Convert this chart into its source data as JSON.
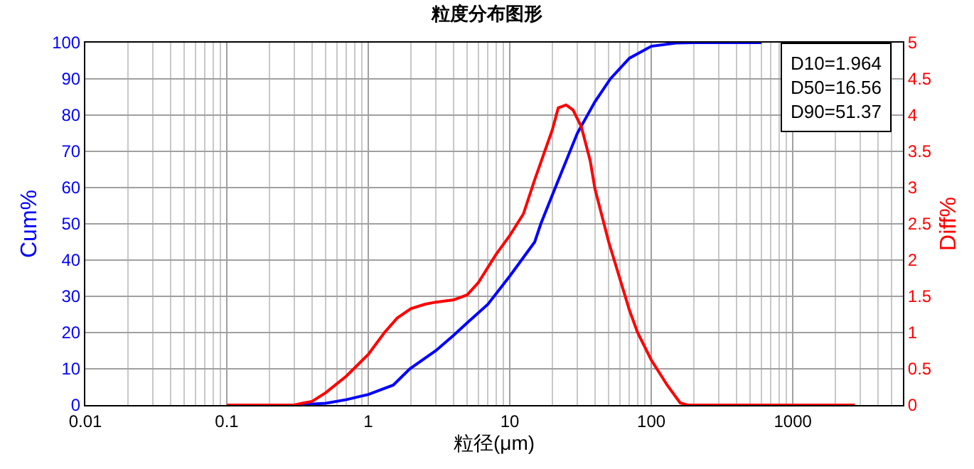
{
  "chart_data": {
    "type": "line",
    "title": "粒度分布图形",
    "xlabel": "粒径(μm)",
    "ylabel": "Cum%",
    "y2label": "Diff%",
    "log": "x",
    "grid": true,
    "marker": "none",
    "line_style": "solid",
    "xlim": [
      0.01,
      6000
    ],
    "xticks": [
      0.01,
      0.1,
      1,
      10,
      100,
      1000
    ],
    "ylim": [
      0,
      100
    ],
    "yticks": [
      0,
      10,
      20,
      30,
      40,
      50,
      60,
      70,
      80,
      90,
      100
    ],
    "y2lim": [
      0,
      5
    ],
    "y2ticks": [
      0,
      0.5,
      1,
      1.5,
      2,
      2.5,
      3,
      3.5,
      4,
      4.5,
      5
    ],
    "annotations": [
      "D10=1.964",
      "D50=16.56",
      "D90=51.37"
    ],
    "series": [
      {
        "color": "#0000ff",
        "x": [
          0.1,
          0.3,
          0.5,
          0.7,
          1,
          1.5,
          1.964,
          3,
          4,
          5,
          7,
          10,
          15,
          16.56,
          20,
          30,
          40,
          51.37,
          70,
          100,
          150,
          200,
          600
        ],
        "values": [
          0,
          0,
          0.5,
          1.5,
          2.9,
          5.5,
          10,
          15,
          19.2,
          22.7,
          27.8,
          35.6,
          45,
          50,
          58,
          75,
          83.7,
          90,
          95.7,
          99,
          99.9,
          100,
          100
        ]
      },
      {
        "color": "#ff0000",
        "axis": "y2",
        "x": [
          0.1,
          0.3,
          0.35,
          0.4,
          0.5,
          0.7,
          1,
          1.3,
          1.6,
          2,
          2.5,
          3,
          4,
          5,
          6,
          8,
          10,
          12.5,
          15,
          20,
          22,
          25,
          28,
          32,
          37,
          40,
          50,
          70,
          80,
          100,
          130,
          160,
          180,
          2750
        ],
        "values": [
          0,
          0,
          0.03,
          0.05,
          0.17,
          0.4,
          0.7,
          1.0,
          1.2,
          1.33,
          1.39,
          1.42,
          1.45,
          1.52,
          1.69,
          2.08,
          2.34,
          2.64,
          3.11,
          3.8,
          4.1,
          4.14,
          4.07,
          3.84,
          3.37,
          2.98,
          2.25,
          1.31,
          1.0,
          0.62,
          0.27,
          0.03,
          0,
          0
        ]
      }
    ]
  }
}
